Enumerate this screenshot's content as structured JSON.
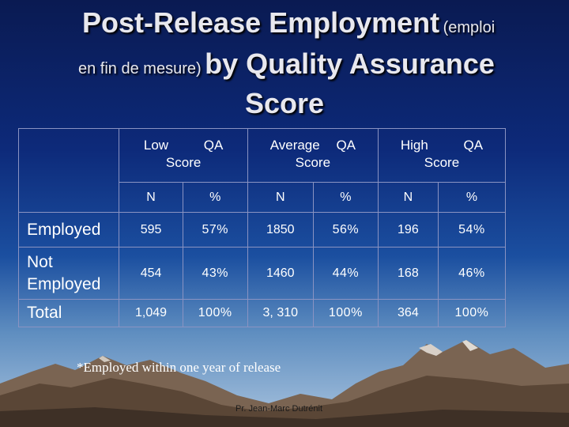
{
  "slide": {
    "title_line1_big": "Post-Release Employment",
    "title_line1_small": "(emploi",
    "title_line2_small": "en fin de mesure)",
    "title_line2_big": "by Quality Assurance",
    "title_line3_big": "Score"
  },
  "table": {
    "groups": [
      {
        "line1": "Low QA",
        "line2": "Score"
      },
      {
        "line1": "Average QA",
        "line2": "Score"
      },
      {
        "line1": "High QA",
        "line2": "Score"
      }
    ],
    "subheaders": [
      "N",
      "%",
      "N",
      "%",
      "N",
      "%"
    ],
    "rows": [
      {
        "label": "Employed",
        "cells": [
          "595",
          "57%",
          "1850",
          "56%",
          "196",
          "54%"
        ]
      },
      {
        "label_line1": "Not",
        "label_line2": "Employed",
        "cells": [
          "454",
          "43%",
          "1460",
          "44%",
          "168",
          "46%"
        ]
      },
      {
        "label": "Total",
        "cells": [
          "1,049",
          "100%",
          "3, 310",
          "100%",
          "364",
          "100%"
        ]
      }
    ]
  },
  "note": "*Employed within one year of release",
  "footer": "Pr. Jean-Marc Dutrénit"
}
